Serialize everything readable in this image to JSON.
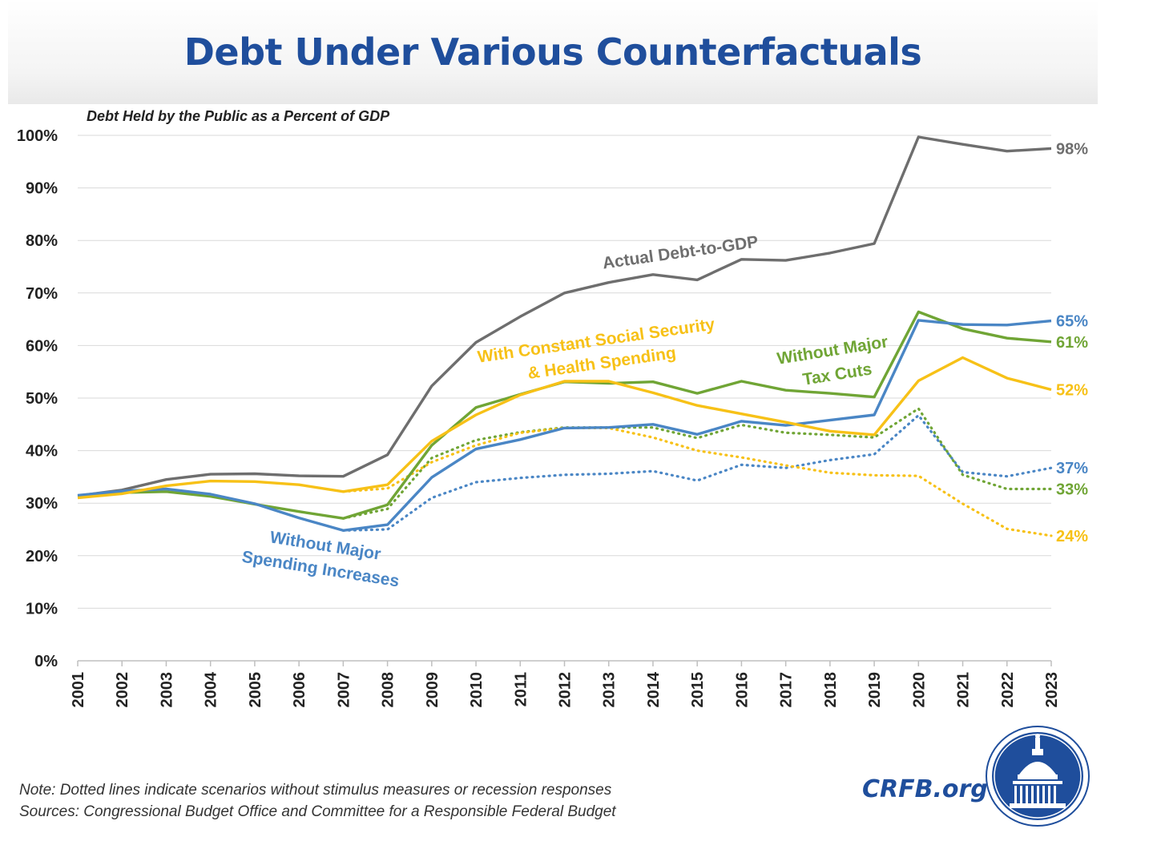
{
  "header": {
    "title": "Debt Under Various Counterfactuals"
  },
  "chart_data": {
    "type": "line",
    "ylabel": "Debt Held by the Public as a Percent of GDP",
    "ylim": [
      0,
      100
    ],
    "ytick_labels": [
      "0%",
      "10%",
      "20%",
      "30%",
      "40%",
      "50%",
      "60%",
      "70%",
      "80%",
      "90%",
      "100%"
    ],
    "ytick_values": [
      0,
      10,
      20,
      30,
      40,
      50,
      60,
      70,
      80,
      90,
      100
    ],
    "x": [
      "2001",
      "2002",
      "2003",
      "2004",
      "2005",
      "2006",
      "2007",
      "2008",
      "2009",
      "2010",
      "2011",
      "2012",
      "2013",
      "2014",
      "2015",
      "2016",
      "2017",
      "2018",
      "2019",
      "2020",
      "2021",
      "2022",
      "2023"
    ],
    "grid": "horizontal",
    "series": [
      {
        "name": "Actual Debt-to-GDP",
        "color": "#6e6e6e",
        "style": "solid",
        "values": [
          31.4,
          32.5,
          34.5,
          35.5,
          35.6,
          35.2,
          35.1,
          39.2,
          52.3,
          60.6,
          65.5,
          70.0,
          72.0,
          73.5,
          72.5,
          76.4,
          76.2,
          77.6,
          79.4,
          99.7,
          98.3,
          97.0,
          97.5
        ],
        "end_label": "98%"
      },
      {
        "name": "Without Major Tax Cuts",
        "color": "#70a535",
        "style": "solid",
        "values": [
          31.2,
          32.0,
          32.2,
          31.3,
          29.8,
          28.4,
          27.1,
          29.7,
          41.0,
          48.2,
          50.7,
          53.1,
          52.8,
          53.1,
          50.9,
          53.2,
          51.5,
          50.9,
          50.2,
          66.4,
          63.2,
          61.4,
          60.7
        ],
        "end_label": "61%"
      },
      {
        "name": "Without Major Spending Increases",
        "color": "#4a86c5",
        "style": "solid",
        "values": [
          31.5,
          32.3,
          32.7,
          31.7,
          29.9,
          27.2,
          24.8,
          25.9,
          34.9,
          40.3,
          42.1,
          44.3,
          44.4,
          45.0,
          43.1,
          45.6,
          44.8,
          45.8,
          46.8,
          64.8,
          64.0,
          63.9,
          64.7
        ],
        "end_label": "65%"
      },
      {
        "name": "With Constant Social Security & Health Spending",
        "color": "#f7c117",
        "style": "solid",
        "values": [
          31.0,
          31.8,
          33.3,
          34.2,
          34.1,
          33.5,
          32.2,
          33.5,
          41.8,
          46.8,
          50.6,
          53.2,
          53.2,
          51.0,
          48.6,
          47.0,
          45.4,
          43.7,
          43.0,
          53.3,
          57.7,
          53.8,
          51.6
        ],
        "end_label": "52%"
      },
      {
        "color": "#4a86c5",
        "style": "dotted",
        "values": [
          null,
          null,
          null,
          null,
          null,
          null,
          24.8,
          25.0,
          31.0,
          34.0,
          34.8,
          35.4,
          35.6,
          36.1,
          34.3,
          37.3,
          36.7,
          38.2,
          39.3,
          46.7,
          35.9,
          35.1,
          36.7
        ],
        "end_label": "37%"
      },
      {
        "color": "#70a535",
        "style": "dotted",
        "values": [
          null,
          null,
          null,
          null,
          null,
          null,
          27.1,
          28.9,
          38.6,
          42.0,
          43.5,
          44.4,
          44.4,
          44.4,
          42.4,
          44.9,
          43.4,
          43.0,
          42.5,
          48.0,
          35.4,
          32.7,
          32.7
        ],
        "end_label": "33%"
      },
      {
        "color": "#f7c117",
        "style": "dotted",
        "values": [
          null,
          null,
          null,
          null,
          null,
          null,
          32.2,
          32.8,
          37.8,
          41.0,
          43.4,
          44.3,
          44.3,
          42.5,
          40.0,
          38.7,
          37.2,
          35.8,
          35.3,
          35.2,
          29.9,
          25.1,
          23.8
        ],
        "end_label": "24%"
      }
    ],
    "annotations": [
      {
        "text": "Actual Debt-to-GDP",
        "color": "#6e6e6e"
      },
      {
        "text": "With Constant Social Security",
        "color": "#f7c117"
      },
      {
        "text": "& Health Spending",
        "color": "#f7c117"
      },
      {
        "text": "Without Major",
        "color": "#70a535"
      },
      {
        "text": "Tax Cuts",
        "color": "#70a535"
      },
      {
        "text": "Without Major",
        "color": "#4a86c5"
      },
      {
        "text": "Spending Increases",
        "color": "#4a86c5"
      }
    ]
  },
  "footer": {
    "note": "Note: Dotted lines indicate scenarios without stimulus measures or recession responses",
    "sources": "Sources: Congressional Budget Office and Committee for a Responsible Federal Budget",
    "brand": "CRFB.org",
    "logo_name": "capitol-dome-logo"
  }
}
